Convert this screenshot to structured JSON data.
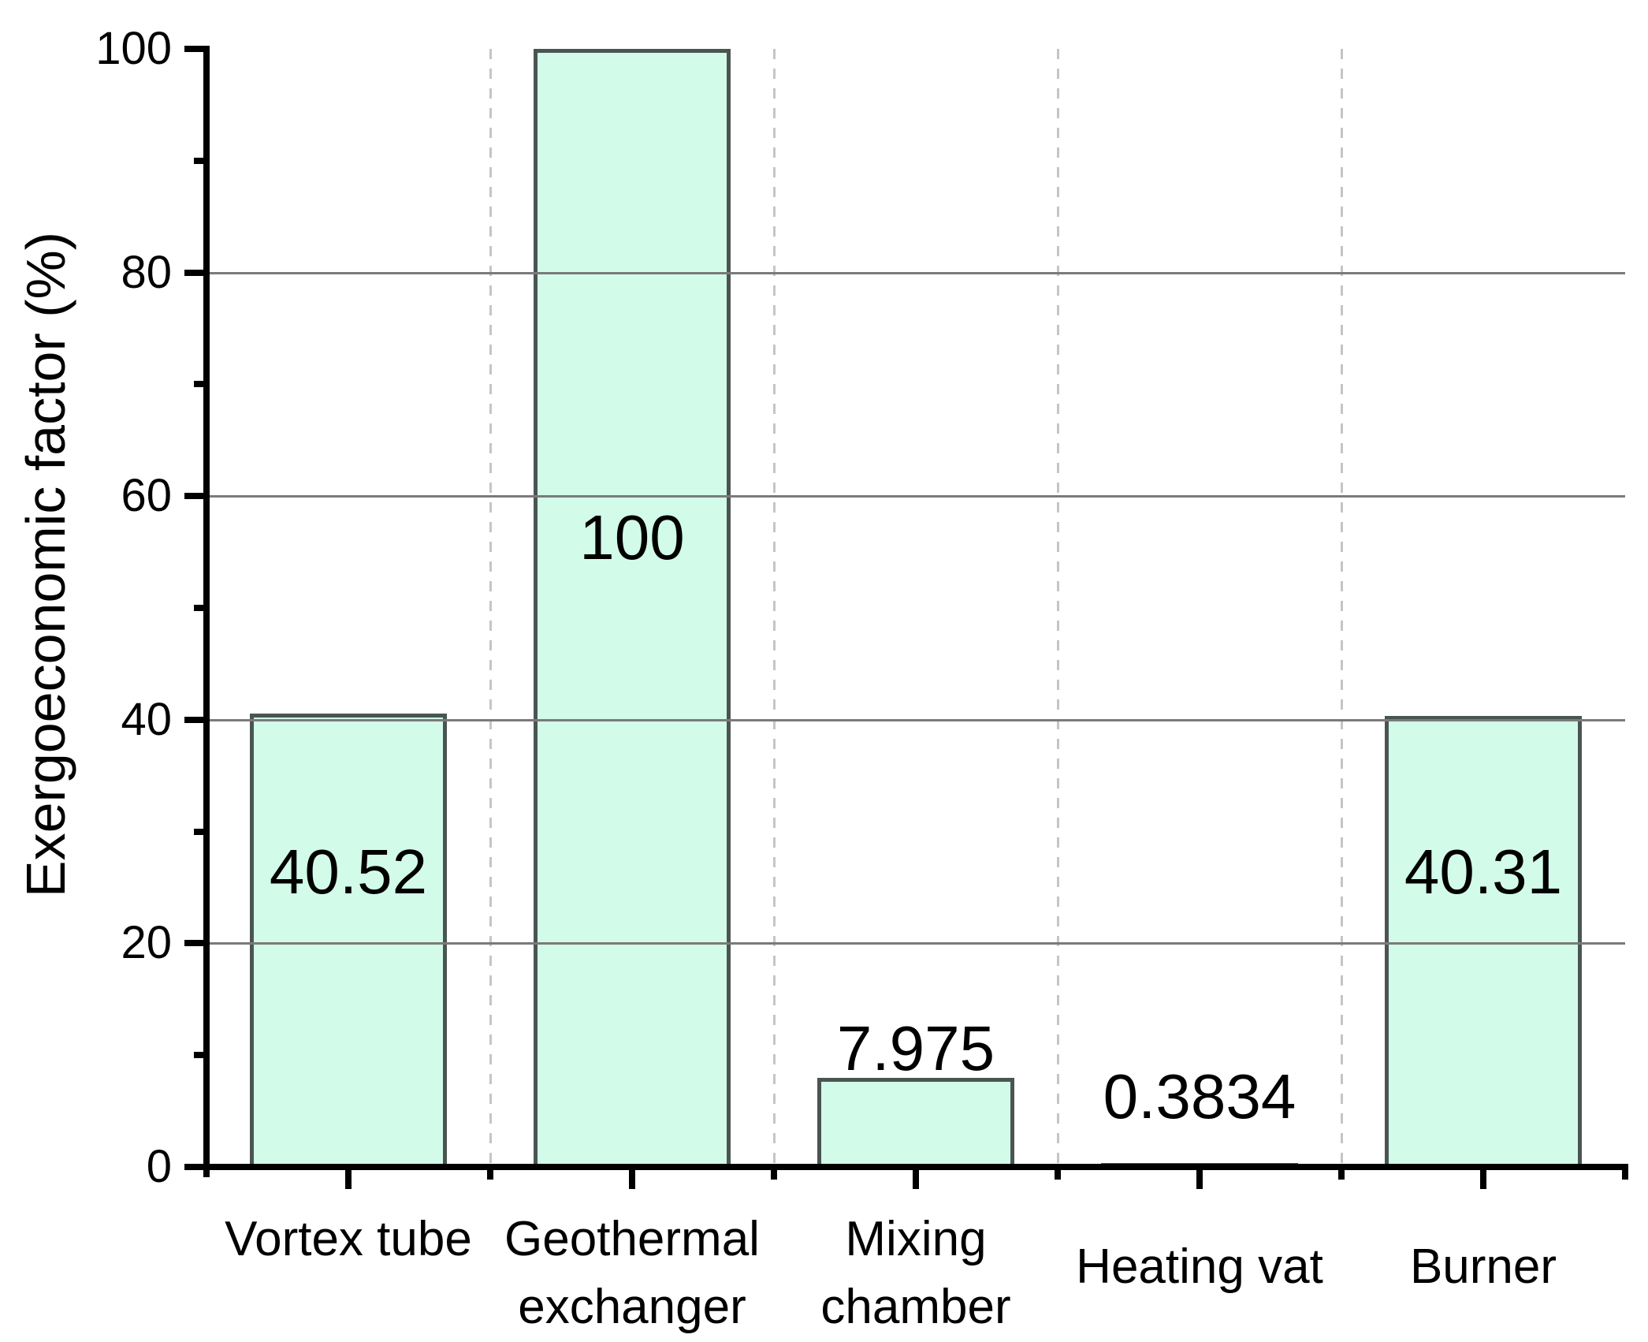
{
  "chart_data": {
    "type": "bar",
    "title": "",
    "xlabel": "",
    "ylabel": "Exergoeconomic factor (%)",
    "categories": [
      "Vortex tube",
      "Geothermal exchanger",
      "Mixing chamber",
      "Heating vat",
      "Burner"
    ],
    "category_label_lines": [
      [
        "Vortex tube"
      ],
      [
        "Geothermal",
        "exchanger"
      ],
      [
        "Mixing",
        "chamber"
      ],
      [
        "Heating vat"
      ],
      [
        "Burner"
      ]
    ],
    "category_label_row": [
      "top",
      "top",
      "top",
      "middle",
      "middle"
    ],
    "values": [
      40.52,
      100,
      7.975,
      0.3834,
      40.31
    ],
    "value_labels": [
      "40.52",
      "100",
      "7.975",
      "0.3834",
      "40.31"
    ],
    "value_label_placement": [
      "inside",
      "inside",
      "above",
      "above",
      "inside"
    ],
    "ylim": [
      0,
      100
    ],
    "yticks": [
      0,
      20,
      40,
      60,
      80,
      100
    ],
    "ytick_labels": [
      "0",
      "20",
      "40",
      "60",
      "80",
      "100"
    ],
    "minor_yticks": [
      10,
      30,
      50,
      70,
      90
    ],
    "grid": {
      "horizontal": "solid at major yticks",
      "vertical": "dashed at category boundaries"
    },
    "legend_position": "none",
    "colors": {
      "bar_fill": "#d2fce9",
      "bar_border": "#4a5552",
      "gridline": "#7a7a7a",
      "dashed_separator": "#c5c5c5",
      "axis": "#000000",
      "text": "#000000",
      "background": "#ffffff"
    }
  }
}
